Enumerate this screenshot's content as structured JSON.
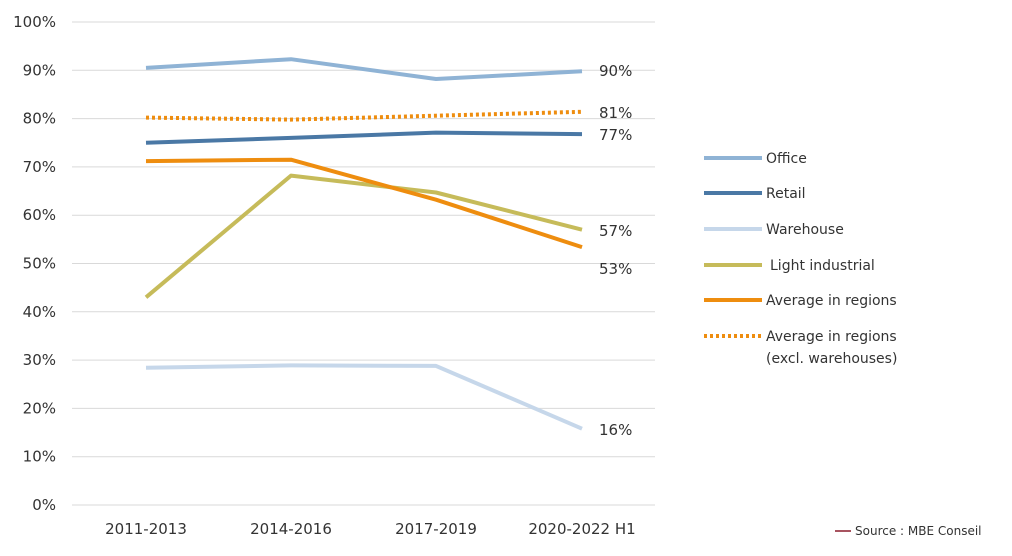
{
  "chart_data": {
    "type": "line",
    "categories": [
      "2011-2013",
      "2014-2016",
      "2017-2019",
      "2020-2022 H1"
    ],
    "ylim": [
      0,
      100
    ],
    "yticks": [
      0,
      10,
      20,
      30,
      40,
      50,
      60,
      70,
      80,
      90,
      100
    ],
    "ytick_suffix": "%",
    "grid": "horizontal",
    "legend_position": "right",
    "series": [
      {
        "name": "Office",
        "values": [
          90.5,
          92.3,
          88.2,
          89.8
        ],
        "color": "#8fb3d5",
        "dash": "solid",
        "end_label": "90%"
      },
      {
        "name": "Retail",
        "values": [
          75.0,
          76.0,
          77.1,
          76.8
        ],
        "color": "#4a78a5",
        "dash": "solid",
        "end_label": "77%"
      },
      {
        "name": "Warehouse",
        "values": [
          28.4,
          28.9,
          28.8,
          15.8
        ],
        "color": "#c6d7ea",
        "dash": "solid",
        "end_label": "16%"
      },
      {
        "name": "Light industrial",
        "values": [
          43.0,
          68.2,
          64.7,
          57.0
        ],
        "color": "#c6bb5a",
        "dash": "solid",
        "end_label": "57%"
      },
      {
        "name": "Average in regions",
        "values": [
          71.2,
          71.5,
          63.2,
          53.4
        ],
        "color": "#ee8d0f",
        "dash": "solid",
        "end_label": "53%"
      },
      {
        "name": "Average in regions",
        "name_line2": "(excl. warehouses)",
        "values": [
          80.2,
          79.8,
          80.6,
          81.4
        ],
        "color": "#ee8d0f",
        "dash": "dotted",
        "end_label": "81%"
      }
    ],
    "source": "Source : MBE Conseil",
    "source_color": "#8b1a2b"
  }
}
